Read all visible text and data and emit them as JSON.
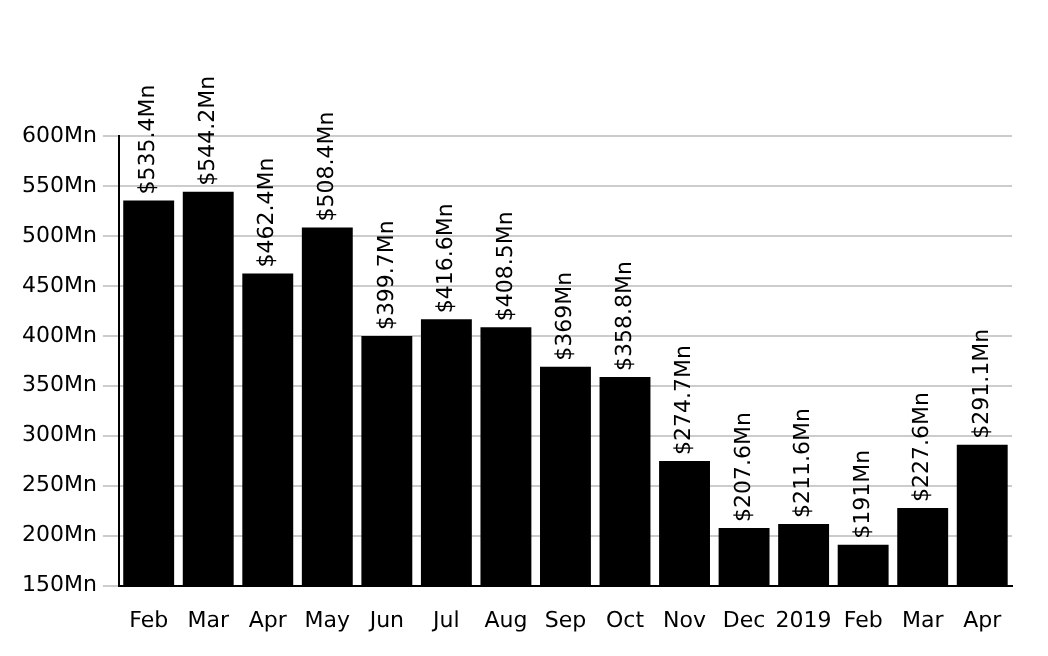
{
  "chart_data": {
    "type": "bar",
    "categories": [
      "Feb",
      "Mar",
      "Apr",
      "May",
      "Jun",
      "Jul",
      "Aug",
      "Sep",
      "Oct",
      "Nov",
      "Dec",
      "2019",
      "Feb",
      "Mar",
      "Apr"
    ],
    "values": [
      535.4,
      544.2,
      462.4,
      508.4,
      399.7,
      416.6,
      408.5,
      369,
      358.8,
      274.7,
      207.6,
      211.6,
      191,
      227.6,
      291.1
    ],
    "value_labels": [
      "$535.4Mn",
      "$544.2Mn",
      "$462.4Mn",
      "$508.4Mn",
      "$399.7Mn",
      "$416.6Mn",
      "$408.5Mn",
      "$369Mn",
      "$358.8Mn",
      "$274.7Mn",
      "$207.6Mn",
      "$211.6Mn",
      "$191Mn",
      "$227.6Mn",
      "$291.1Mn"
    ],
    "color": "#000000",
    "ylim": [
      150,
      600
    ],
    "yticks": [
      {
        "value": 150,
        "label": "150Mn"
      },
      {
        "value": 200,
        "label": "200Mn"
      },
      {
        "value": 250,
        "label": "250Mn"
      },
      {
        "value": 300,
        "label": "300Mn"
      },
      {
        "value": 350,
        "label": "350Mn"
      },
      {
        "value": 400,
        "label": "400Mn"
      },
      {
        "value": 450,
        "label": "450Mn"
      },
      {
        "value": 500,
        "label": "500Mn"
      },
      {
        "value": 550,
        "label": "550Mn"
      },
      {
        "value": 600,
        "label": "600Mn"
      }
    ],
    "grid": "y"
  }
}
